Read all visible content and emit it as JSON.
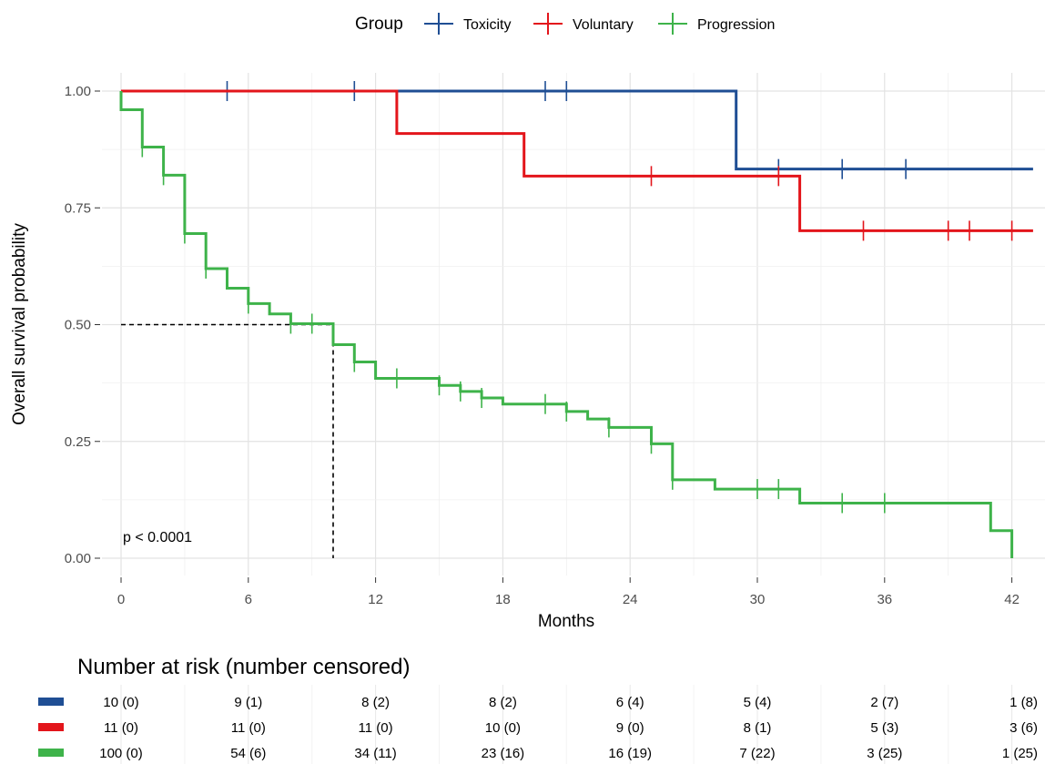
{
  "chart_data": {
    "type": "line",
    "subtype": "step (Kaplan-Meier)",
    "xlabel": "Months",
    "ylabel": "Overall survival probability",
    "xlim": [
      0,
      43
    ],
    "ylim": [
      0,
      1
    ],
    "xticks": [
      "0",
      "6",
      "12",
      "18",
      "24",
      "30",
      "36",
      "42"
    ],
    "yticks": [
      "0.00",
      "0.25",
      "0.50",
      "0.75",
      "1.00"
    ],
    "grid": true,
    "legend_title": "Group",
    "legend_position": "top",
    "annotation": "p < 0.0001",
    "median_line": {
      "x": 10,
      "y": 0.5,
      "style": "dashed"
    },
    "series": [
      {
        "name": "Toxicity",
        "color": "#1f4e94",
        "steps": [
          [
            0,
            1.0
          ],
          [
            29,
            0.833
          ]
        ],
        "end_x": 43,
        "censors": [
          [
            5,
            1.0
          ],
          [
            11,
            1.0
          ],
          [
            20,
            1.0
          ],
          [
            21,
            1.0
          ],
          [
            31,
            0.833
          ],
          [
            34,
            0.833
          ],
          [
            37,
            0.833
          ]
        ]
      },
      {
        "name": "Voluntary",
        "color": "#e3151b",
        "steps": [
          [
            0,
            1.0
          ],
          [
            13,
            0.909
          ],
          [
            19,
            0.818
          ],
          [
            32,
            0.701
          ]
        ],
        "end_x": 43,
        "censors": [
          [
            25,
            0.818
          ],
          [
            31,
            0.818
          ],
          [
            35,
            0.701
          ],
          [
            39,
            0.701
          ],
          [
            40,
            0.701
          ],
          [
            42,
            0.701
          ]
        ]
      },
      {
        "name": "Progression",
        "color": "#3eb34a",
        "steps": [
          [
            0,
            0.96
          ],
          [
            1,
            0.88
          ],
          [
            2,
            0.82
          ],
          [
            3,
            0.695
          ],
          [
            4,
            0.62
          ],
          [
            5,
            0.578
          ],
          [
            6,
            0.545
          ],
          [
            7,
            0.523
          ],
          [
            8,
            0.502
          ],
          [
            10,
            0.457
          ],
          [
            11,
            0.42
          ],
          [
            12,
            0.385
          ],
          [
            15,
            0.37
          ],
          [
            16,
            0.357
          ],
          [
            17,
            0.343
          ],
          [
            18,
            0.33
          ],
          [
            21,
            0.314
          ],
          [
            22,
            0.298
          ],
          [
            23,
            0.28
          ],
          [
            25,
            0.245
          ],
          [
            26,
            0.168
          ],
          [
            28,
            0.148
          ],
          [
            32,
            0.118
          ],
          [
            41,
            0.059
          ],
          [
            42,
            0.0
          ]
        ],
        "start_y": 1.0,
        "end_x": 42,
        "censors": [
          [
            1,
            0.88
          ],
          [
            2,
            0.82
          ],
          [
            3,
            0.695
          ],
          [
            4,
            0.62
          ],
          [
            6,
            0.545
          ],
          [
            8,
            0.502
          ],
          [
            9,
            0.502
          ],
          [
            11,
            0.42
          ],
          [
            13,
            0.385
          ],
          [
            15,
            0.37
          ],
          [
            16,
            0.357
          ],
          [
            17,
            0.343
          ],
          [
            20,
            0.33
          ],
          [
            21,
            0.314
          ],
          [
            23,
            0.28
          ],
          [
            25,
            0.245
          ],
          [
            26,
            0.168
          ],
          [
            30,
            0.148
          ],
          [
            31,
            0.148
          ],
          [
            34,
            0.118
          ],
          [
            36,
            0.118
          ]
        ]
      }
    ]
  },
  "risk_table": {
    "title": "Number at risk (number censored)",
    "times": [
      0,
      6,
      12,
      18,
      24,
      30,
      36,
      42
    ],
    "rows": [
      {
        "group": "Toxicity",
        "color": "#1f4e94",
        "cells": [
          "10 (0)",
          "9 (1)",
          "8 (2)",
          "8 (2)",
          "6 (4)",
          "5 (4)",
          "2 (7)",
          "1 (8)"
        ]
      },
      {
        "group": "Voluntary",
        "color": "#e3151b",
        "cells": [
          "11 (0)",
          "11 (0)",
          "11 (0)",
          "10 (0)",
          "9 (0)",
          "8 (1)",
          "5 (3)",
          "3 (6)"
        ]
      },
      {
        "group": "Progression",
        "color": "#3eb34a",
        "cells": [
          "100 (0)",
          "54 (6)",
          "34 (11)",
          "23 (16)",
          "16 (19)",
          "7 (22)",
          "3 (25)",
          "1 (25)"
        ]
      }
    ]
  }
}
